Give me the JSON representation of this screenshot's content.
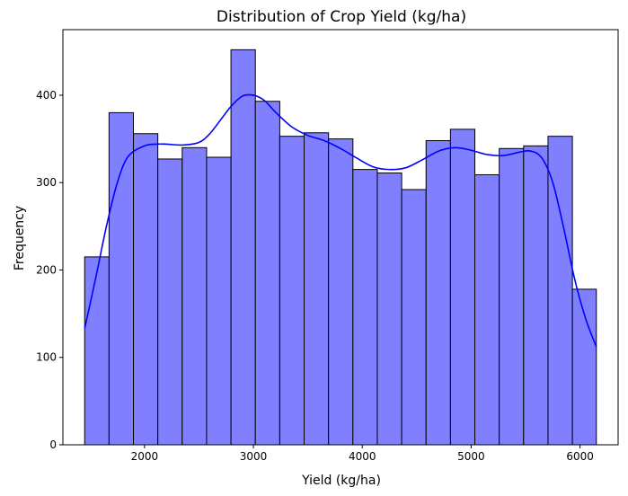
{
  "chart_data": {
    "type": "bar",
    "subtype": "histogram-with-kde",
    "title": "Distribution of Crop Yield (kg/ha)",
    "xlabel": "Yield (kg/ha)",
    "ylabel": "Frequency",
    "xlim": [
      1250,
      6350
    ],
    "ylim": [
      0,
      475
    ],
    "x_ticks": [
      2000,
      3000,
      4000,
      5000,
      6000
    ],
    "y_ticks": [
      0,
      100,
      200,
      300,
      400
    ],
    "bin_edges": [
      1450,
      1674,
      1898,
      2122,
      2346,
      2570,
      2794,
      3018,
      3242,
      3466,
      3690,
      3914,
      4138,
      4362,
      4586,
      4810,
      5034,
      5258,
      5482,
      5706,
      5930,
      6150
    ],
    "values": [
      215,
      380,
      356,
      327,
      340,
      329,
      452,
      393,
      353,
      357,
      350,
      315,
      311,
      292,
      348,
      361,
      309,
      339,
      342,
      353,
      178
    ],
    "bar_color": "#8080ff",
    "bar_edge_color": "#000000",
    "kde": {
      "color": "#0000ff",
      "x": [
        1450,
        1550,
        1650,
        1750,
        1850,
        2000,
        2100,
        2200,
        2350,
        2500,
        2600,
        2700,
        2800,
        2900,
        3000,
        3100,
        3200,
        3350,
        3500,
        3650,
        3800,
        3950,
        4100,
        4250,
        4400,
        4550,
        4700,
        4850,
        5000,
        5150,
        5300,
        5450,
        5550,
        5650,
        5750,
        5850,
        5950,
        6050,
        6150
      ],
      "y": [
        133,
        190,
        250,
        300,
        330,
        342,
        344,
        344,
        343,
        346,
        356,
        372,
        388,
        399,
        400,
        394,
        381,
        364,
        354,
        348,
        339,
        328,
        318,
        315,
        317,
        326,
        336,
        340,
        337,
        332,
        331,
        335,
        336,
        328,
        300,
        248,
        190,
        145,
        112
      ]
    }
  }
}
